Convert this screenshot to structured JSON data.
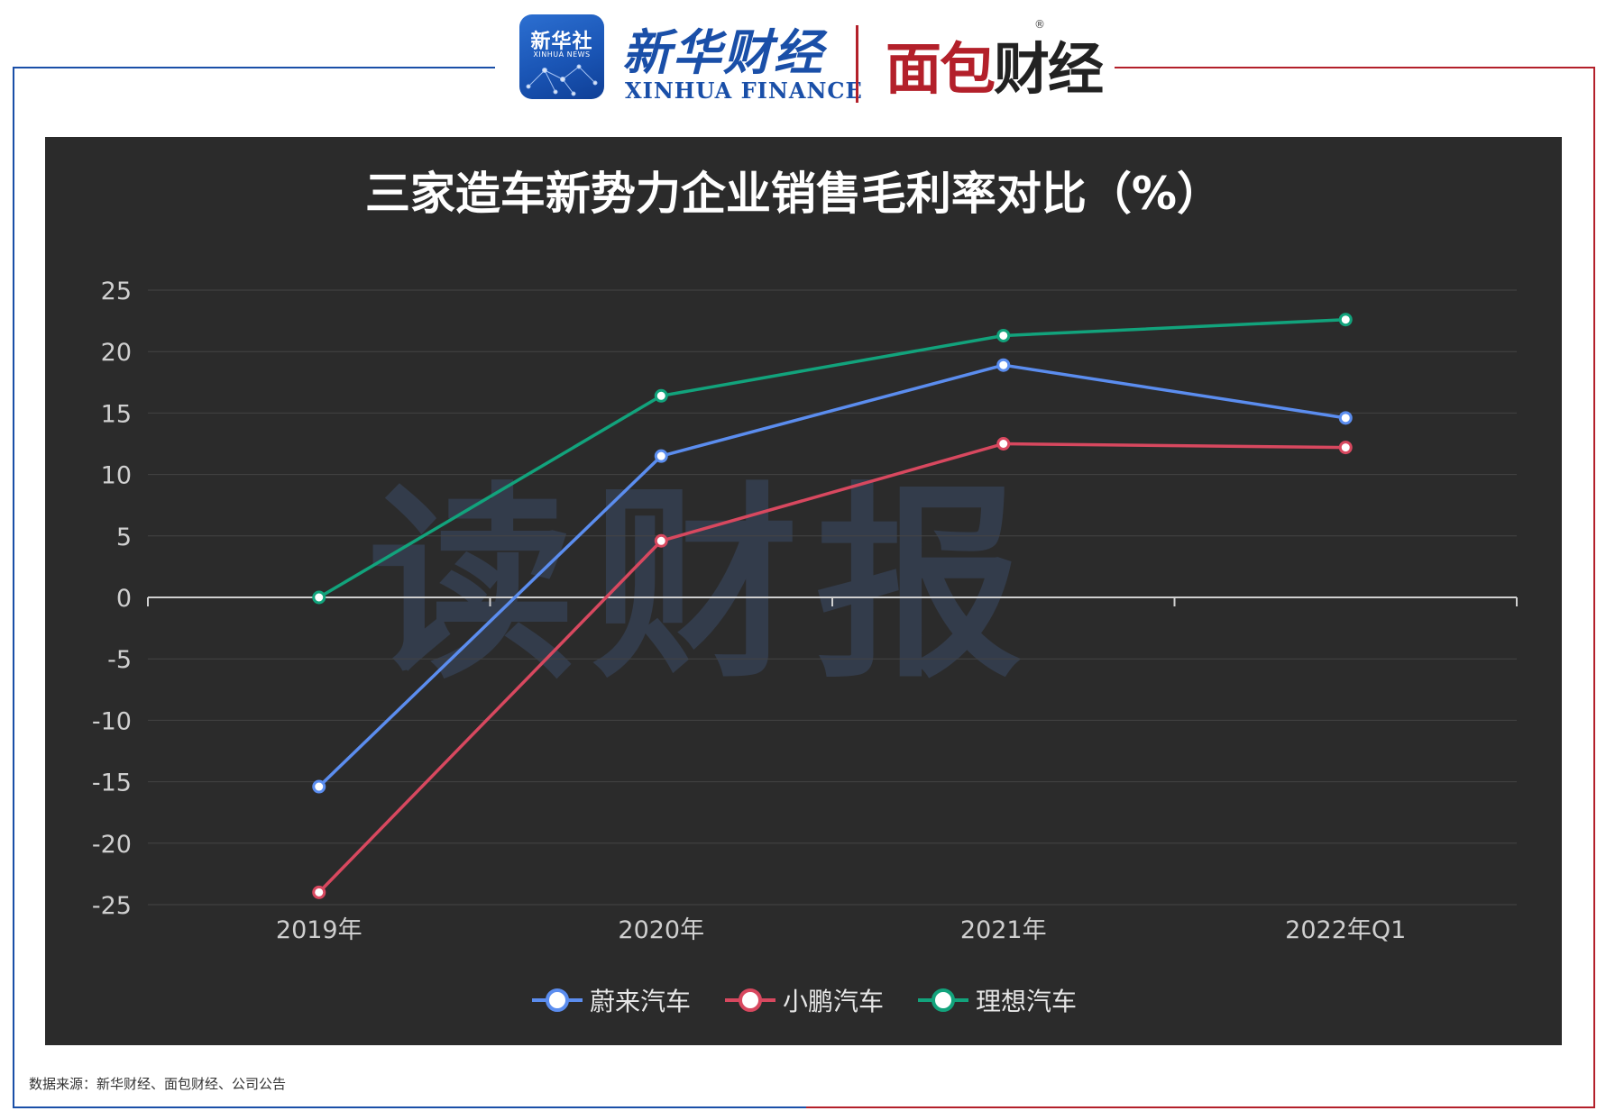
{
  "header": {
    "logo_cn": "新华社",
    "logo_en": "XINHUA NEWS",
    "brand_cn": "新华财经",
    "brand_en": "XINHUA FINANCE",
    "brand2_part1": "面包",
    "brand2_part2": "财经",
    "registered_mark": "®"
  },
  "watermark": "读财报",
  "source_note": "数据来源：新华财经、面包财经、公司公告",
  "colors": {
    "frame_left": "#1a4fa8",
    "frame_right": "#b3202a",
    "panel_bg": "#2b2b2b"
  },
  "chart_data": {
    "type": "line",
    "title": "三家造车新势力企业销售毛利率对比（%）",
    "categories": [
      "2019年",
      "2020年",
      "2021年",
      "2022年Q1"
    ],
    "ylim": [
      -25,
      25
    ],
    "yticks": [
      25,
      20,
      15,
      10,
      5,
      0,
      -5,
      -10,
      -15,
      -20,
      -25
    ],
    "grid": true,
    "legend_position": "bottom",
    "series": [
      {
        "name": "蔚来汽车",
        "color": "#5b8def",
        "values": [
          -15.4,
          11.5,
          18.9,
          14.6
        ]
      },
      {
        "name": "小鹏汽车",
        "color": "#d8485f",
        "values": [
          -24.0,
          4.6,
          12.5,
          12.2
        ]
      },
      {
        "name": "理想汽车",
        "color": "#12a37c",
        "values": [
          0.0,
          16.4,
          21.3,
          22.6
        ]
      }
    ]
  }
}
